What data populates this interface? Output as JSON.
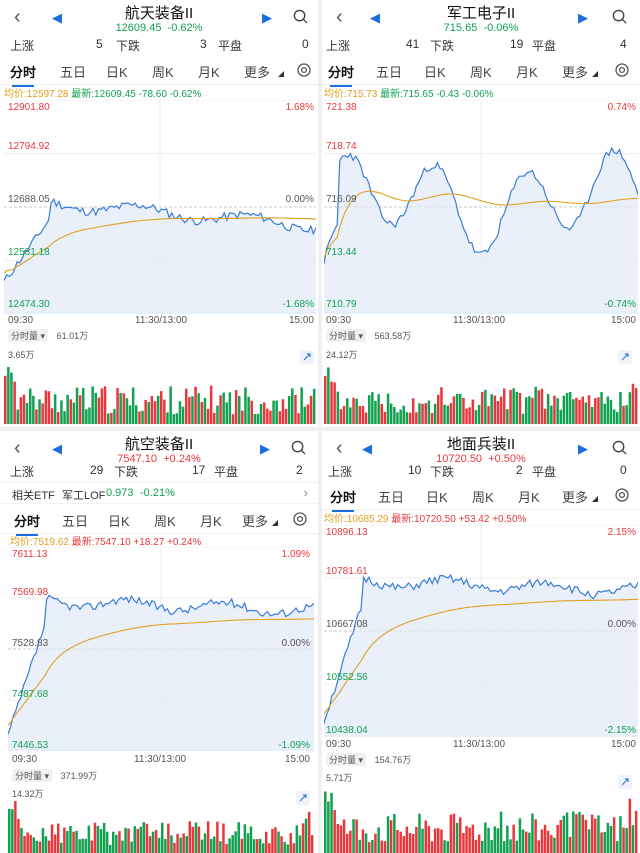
{
  "panels": [
    {
      "id": "p1",
      "title": "航天装备II",
      "price": "12609.45",
      "change_pct": "-0.62%",
      "up_label": "上涨",
      "up_count": "5",
      "down_label": "下跌",
      "down_count": "3",
      "flat_label": "平盘",
      "flat_count": "0",
      "tabs": [
        "分时",
        "五日",
        "日K",
        "周K",
        "月K",
        "更多"
      ],
      "avg_label": "均价:12597.28",
      "latest_label": "最新:12609.45",
      "delta": "-78.60",
      "delta_pct": "-0.62%",
      "y_labels": [
        "12901.80",
        "12794.92",
        "12688.05",
        "12581.18",
        "12474.30"
      ],
      "pct_top": "1.68%",
      "pct_mid": "0.00%",
      "pct_bot": "-1.68%",
      "x_labels": [
        "09:30",
        "11:30/13:00",
        "15:00"
      ],
      "vol_dropdown": "分时量",
      "vol_total": "61.01万",
      "vol_max": "3.65万",
      "ylim": [
        12474.3,
        12901.8
      ],
      "prev_close": 12688.05,
      "trend": "flat_down",
      "seed": 11
    },
    {
      "id": "p2",
      "title": "军工电子II",
      "price": "715.65",
      "change_pct": "-0.06%",
      "up_label": "上涨",
      "up_count": "41",
      "down_label": "下跌",
      "down_count": "19",
      "flat_label": "平盘",
      "flat_count": "4",
      "tabs": [
        "分时",
        "五日",
        "日K",
        "周K",
        "月K",
        "更多"
      ],
      "avg_label": "均价:715.73",
      "latest_label": "最新:715.65",
      "delta": "-0.43",
      "delta_pct": "-0.06%",
      "y_labels": [
        "721.38",
        "718.74",
        "716.09",
        "713.44",
        "710.79"
      ],
      "pct_top": "0.74%",
      "pct_mid": "",
      "pct_bot": "-0.74%",
      "x_labels": [
        "09:30",
        "11:30/13:00",
        "15:00"
      ],
      "vol_dropdown": "分时量",
      "vol_total": "563.58万",
      "vol_max": "24.12万",
      "ylim": [
        710.79,
        721.38
      ],
      "prev_close": 716.09,
      "trend": "volatile",
      "seed": 23
    },
    {
      "id": "p3",
      "title": "航空装备II",
      "price": "7547.10",
      "change_pct": "+0.24%",
      "up_label": "上涨",
      "up_count": "29",
      "down_label": "下跌",
      "down_count": "17",
      "flat_label": "平盘",
      "flat_count": "2",
      "etf_label": "相关ETF",
      "etf_name": "军工LOF",
      "etf_price": "0.973",
      "etf_pct": "-0.21%",
      "tabs": [
        "分时",
        "五日",
        "日K",
        "周K",
        "月K",
        "更多"
      ],
      "avg_label": "均价:7519.62",
      "latest_label": "最新:7547.10",
      "delta": "+18.27",
      "delta_pct": "+0.24%",
      "y_labels": [
        "7611.13",
        "7569.98",
        "7528.83",
        "7487.68",
        "7446.53"
      ],
      "pct_top": "1.09%",
      "pct_mid": "0.00%",
      "pct_bot": "-1.09%",
      "x_labels": [
        "09:30",
        "11:30/13:00",
        "15:00"
      ],
      "vol_dropdown": "分时量",
      "vol_total": "371.99万",
      "vol_max": "14.32万",
      "ylim": [
        7446.53,
        7611.13
      ],
      "prev_close": 7528.83,
      "trend": "rise_early",
      "seed": 37
    },
    {
      "id": "p4",
      "title": "地面兵装II",
      "price": "10720.50",
      "change_pct": "+0.50%",
      "up_label": "上涨",
      "up_count": "10",
      "down_label": "下跌",
      "down_count": "2",
      "flat_label": "平盘",
      "flat_count": "0",
      "tabs": [
        "分时",
        "五日",
        "日K",
        "周K",
        "月K",
        "更多"
      ],
      "avg_label": "均价:10685.29",
      "latest_label": "最新:10720.50",
      "delta": "+53.42",
      "delta_pct": "+0.50%",
      "y_labels": [
        "10896.13",
        "10781.61",
        "10667.08",
        "10552.56",
        "10438.04"
      ],
      "pct_top": "2.15%",
      "pct_mid": "0.00%",
      "pct_bot": "-2.15%",
      "x_labels": [
        "09:30",
        "11:30/13:00",
        "15:00"
      ],
      "vol_dropdown": "分时量",
      "vol_total": "154.76万",
      "vol_max": "5.71万",
      "ylim": [
        10438.04,
        10896.13
      ],
      "prev_close": 10667.08,
      "trend": "rise_early",
      "seed": 51
    }
  ],
  "colors": {
    "up": "#e8383d",
    "down": "#12a150",
    "avg": "#e0a020",
    "price_line": "#3a7bd5",
    "fill": "#dfeaf8",
    "accent": "#1a6fe0"
  }
}
